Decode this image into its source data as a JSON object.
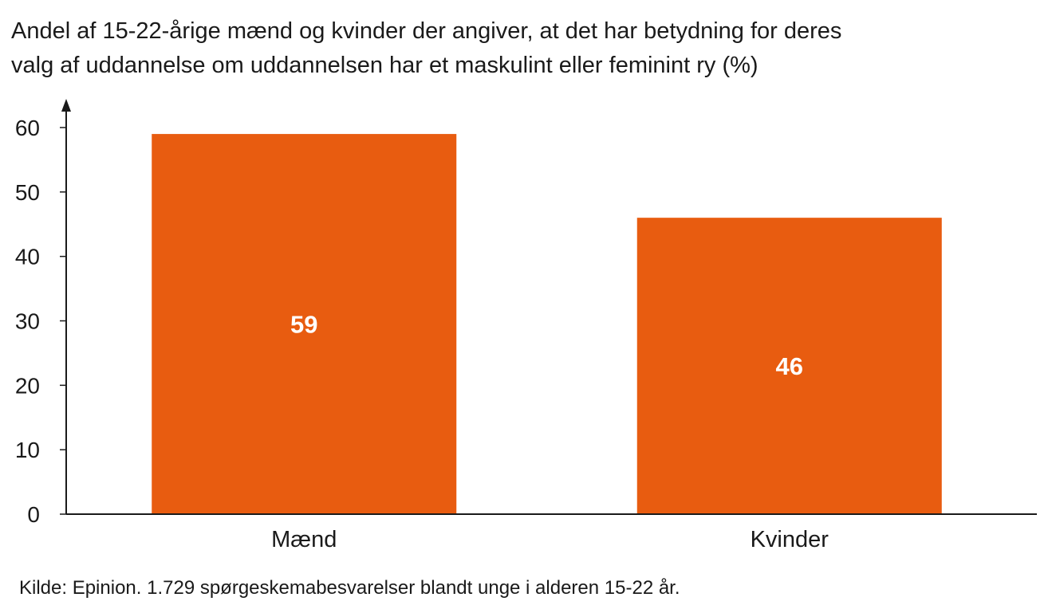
{
  "chart_data": {
    "type": "bar",
    "title_lines": [
      "Andel af 15-22-årige mænd og kvinder der angiver, at det har betydning for deres",
      "valg af uddannelse om uddannelsen har et maskulint eller feminint ry (%)"
    ],
    "categories": [
      "Mænd",
      "Kvinder"
    ],
    "values": [
      59,
      46
    ],
    "data_labels": [
      "59",
      "46"
    ],
    "yticks": [
      0,
      10,
      20,
      30,
      40,
      50,
      60
    ],
    "ylim": [
      0,
      60
    ],
    "xlabel": "",
    "ylabel": "",
    "grid": false,
    "bar_color": "#e85c10",
    "label_color": "#ffffff",
    "axis_color": "#1a1a1a"
  },
  "source": "Kilde: Epinion. 1.729 spørgeskemabesvarelser blandt unge i alderen 15-22 år."
}
